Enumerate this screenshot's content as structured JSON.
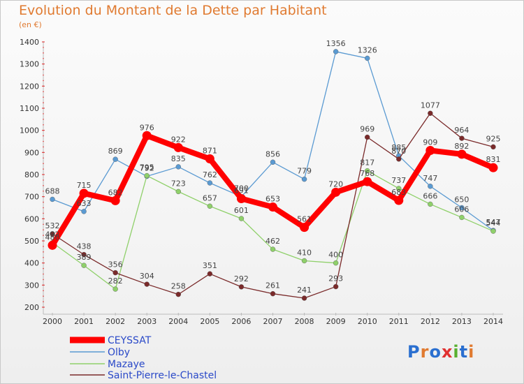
{
  "header": {
    "title": "Evolution du Montant de la Dette par Habitant",
    "subtitle": "(en €)"
  },
  "logo": {
    "text": "Proxiti",
    "colors": [
      "#2a6fd0",
      "#e07a30",
      "#2a6fd0",
      "#e03030",
      "#58b030",
      "#2a6fd0",
      "#e07a30"
    ]
  },
  "chart_data": {
    "type": "line",
    "title": "Evolution du Montant de la Dette par Habitant",
    "ylabel": "(en €)",
    "xlabel": "",
    "ylim": [
      200,
      1400
    ],
    "yticks": [
      200,
      300,
      400,
      500,
      600,
      700,
      800,
      900,
      1000,
      1100,
      1200,
      1300,
      1400
    ],
    "grid": false,
    "legend": "bottom-left",
    "x": [
      "2000",
      "2001",
      "2002",
      "2003",
      "2004",
      "2005",
      "2006",
      "2007",
      "2008",
      "2009",
      "2010",
      "2011",
      "2012",
      "2013",
      "2014"
    ],
    "series": [
      {
        "name": "Olby",
        "color": "#5a9ad2",
        "values": [
          688,
          633,
          869,
          792,
          835,
          762,
          700,
          856,
          779,
          1356,
          1326,
          885,
          747,
          650,
          547
        ]
      },
      {
        "name": "Mazaye",
        "color": "#8fd06a",
        "values": [
          492,
          389,
          282,
          795,
          723,
          657,
          601,
          462,
          410,
          400,
          817,
          737,
          666,
          606,
          544
        ]
      },
      {
        "name": "Saint-Pierre-le-Chastel",
        "color": "#7a2a2a",
        "values": [
          532,
          438,
          356,
          304,
          258,
          351,
          292,
          261,
          241,
          293,
          969,
          870,
          1077,
          964,
          925
        ]
      },
      {
        "name": "CEYSSAT",
        "color": "#ff0000",
        "values": [
          480,
          715,
          682,
          976,
          922,
          871,
          691,
          653,
          561,
          720,
          768,
          683,
          909,
          892,
          831
        ]
      }
    ]
  }
}
